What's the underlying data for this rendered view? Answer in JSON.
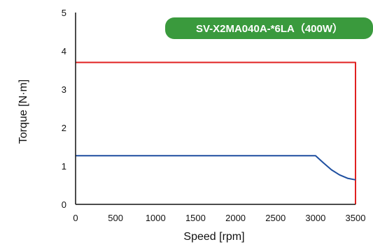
{
  "chart_data": {
    "type": "line",
    "badge": "SV-X2MA040A-*6LA（400W）",
    "xlabel": "Speed [rpm]",
    "ylabel": "Torque [N·m]",
    "xlim": [
      0,
      3500
    ],
    "ylim": [
      0,
      5
    ],
    "x_ticks": [
      "0",
      "500",
      "1000",
      "1500",
      "2000",
      "2500",
      "3000",
      "3500"
    ],
    "y_ticks": [
      "0",
      "1",
      "2",
      "3",
      "4",
      "5"
    ],
    "grid": false,
    "colors": {
      "badge": "#3a9a3d",
      "peak": "#e02020",
      "rated": "#1e4fa0",
      "axis": "#111111"
    },
    "series": [
      {
        "color": "#e02020",
        "x": [
          0,
          3500,
          3500
        ],
        "y": [
          3.7,
          3.7,
          0
        ]
      },
      {
        "color": "#1e4fa0",
        "x": [
          0,
          3000,
          3100,
          3200,
          3300,
          3400,
          3500
        ],
        "y": [
          1.27,
          1.27,
          1.08,
          0.9,
          0.77,
          0.68,
          0.64
        ]
      }
    ]
  }
}
